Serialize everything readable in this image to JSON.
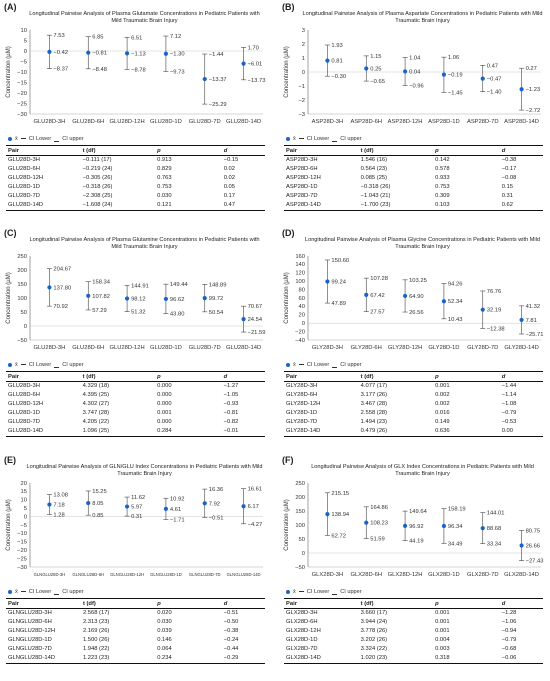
{
  "legend": {
    "mean": "x̄",
    "lower": "CI Lower",
    "upper": "CI upper"
  },
  "table_headers": [
    "Pair",
    "t (df)",
    "p",
    "d"
  ],
  "panels": [
    {
      "label": "(A)",
      "title": "Longitudinal Pairwise Analysis of Plasma Glutamate Concentrations in Pediatric Patients with Mild Traumatic Brain Injury",
      "chart_data": {
        "type": "errorbar",
        "ylabel": "Concentration (µM)",
        "ylim": [
          -30,
          10
        ],
        "yticks": [
          10,
          5,
          0,
          -5,
          -10,
          -15,
          -20,
          -25,
          -30
        ],
        "categories": [
          "GLU28D-3H",
          "GLU28D-6H",
          "GLU28D-12H",
          "GLU28D-1D",
          "GLU28D-7D",
          "GLU28D-14D"
        ],
        "mean": [
          -0.42,
          -0.81,
          -1.13,
          -1.3,
          -13.37,
          -6.01
        ],
        "upper": [
          7.53,
          6.85,
          6.51,
          7.12,
          -1.44,
          1.7
        ],
        "lower": [
          -8.37,
          -8.48,
          -8.78,
          -9.73,
          -25.29,
          -13.73
        ],
        "mean_labels": [
          "−0.42",
          "−0.81",
          "−1.13",
          "−1.30",
          "−13.37",
          "−6.01"
        ],
        "upper_labels": [
          "7.53",
          "6.85",
          "6.51",
          "7.12",
          "−1.44",
          "1.70"
        ],
        "lower_labels": [
          "−8.37",
          "−8.48",
          "−8.78",
          "−9.73",
          "−25.29",
          "−13.73"
        ]
      },
      "table": [
        [
          "GLU28D-3H",
          "−0.111 (17)",
          "0.913",
          "−0.15"
        ],
        [
          "GLU28D-6H",
          "−0.219 (24)",
          "0.829",
          "0.02"
        ],
        [
          "GLU28D-12H",
          "−0.305 (26)",
          "0.763",
          "0.02"
        ],
        [
          "GLU28D-1D",
          "−0.318 (26)",
          "0.753",
          "0.05"
        ],
        [
          "GLU28D-7D",
          "−2.308 (25)",
          "0.030",
          "0.17"
        ],
        [
          "GLU28D-14D",
          "−1.608 (24)",
          "0.121",
          "0.47"
        ]
      ]
    },
    {
      "label": "(B)",
      "title": "Longitudinal Pairwise Analysis of Plasma Aspartate Concentrations in Pediatric Patients with Mild Traumatic Brain Injury",
      "chart_data": {
        "type": "errorbar",
        "ylabel": "Concentration (µM)",
        "ylim": [
          -3,
          3
        ],
        "yticks": [
          3,
          2,
          1,
          0,
          -1,
          -2,
          -3
        ],
        "categories": [
          "ASP28D-3H",
          "ASP28D-6H",
          "ASP28D-12H",
          "ASP28D-1D",
          "ASP28D-7D",
          "ASP28D-14D"
        ],
        "mean": [
          0.81,
          0.25,
          0.04,
          -0.19,
          -0.47,
          -1.23
        ],
        "upper": [
          1.93,
          1.15,
          1.04,
          1.06,
          0.47,
          0.27
        ],
        "lower": [
          -0.3,
          -0.65,
          -0.96,
          -1.45,
          -1.4,
          -2.72
        ],
        "mean_labels": [
          "0.81",
          "0.25",
          "0.04",
          "−0.19",
          "−0.47",
          "−1.23"
        ],
        "upper_labels": [
          "1.93",
          "1.15",
          "1.04",
          "1.06",
          "0.47",
          "0.27"
        ],
        "lower_labels": [
          "−0.30",
          "−0.65",
          "−0.96",
          "−1.45",
          "−1.40",
          "−2.72"
        ]
      },
      "table": [
        [
          "ASP28D-3H",
          "1.546 (16)",
          "0.142",
          "−0.38"
        ],
        [
          "ASP28D-6H",
          "0.564 (23)",
          "0.578",
          "−0.17"
        ],
        [
          "ASP28D-12H",
          "0.085 (25)",
          "0.933",
          "−0.08"
        ],
        [
          "ASP28D-1D",
          "−0.318 (26)",
          "0.753",
          "0.15"
        ],
        [
          "ASP28D-7D",
          "−1.043 (21)",
          "0.309",
          "0.31"
        ],
        [
          "ASP28D-14D",
          "−1.700 (23)",
          "0.103",
          "0.62"
        ]
      ]
    },
    {
      "label": "(C)",
      "title": "Longitudinal Pairwise Analysis of Plasma Glutamine Concentrations in Pediatric Patients with Mild Traumatic Brain Injury",
      "chart_data": {
        "type": "errorbar",
        "ylabel": "Concentration (µM)",
        "ylim": [
          -50,
          250
        ],
        "yticks": [
          250,
          200,
          150,
          100,
          50,
          0,
          -50
        ],
        "categories": [
          "GLU28D-3H",
          "GLU28D-6H",
          "GLU28D-12H",
          "GLU28D-1D",
          "GLU28D-7D",
          "GLU28D-14D"
        ],
        "mean": [
          137.8,
          107.82,
          98.12,
          96.62,
          99.72,
          24.54
        ],
        "upper": [
          204.67,
          158.34,
          144.91,
          149.44,
          148.89,
          70.67
        ],
        "lower": [
          70.92,
          57.29,
          51.32,
          43.8,
          50.54,
          -21.59
        ],
        "mean_labels": [
          "137.80",
          "107.82",
          "98.12",
          "96.62",
          "99.72",
          "24.54"
        ],
        "upper_labels": [
          "204.67",
          "158.34",
          "144.91",
          "149.44",
          "148.89",
          "70.67"
        ],
        "lower_labels": [
          "70.92",
          "57.29",
          "51.32",
          "43.80",
          "50.54",
          "−21.59"
        ]
      },
      "table": [
        [
          "GLU28D-3H",
          "4.329 (18)",
          "0.000",
          "−1.27"
        ],
        [
          "GLU28D-6H",
          "4.395 (25)",
          "0.000",
          "−1.05"
        ],
        [
          "GLU28D-12H",
          "4.302 (27)",
          "0.000",
          "−0.93"
        ],
        [
          "GLU28D-1D",
          "3.747 (28)",
          "0.001",
          "−0.81"
        ],
        [
          "GLU28D-7D",
          "4.205 (22)",
          "0.000",
          "−0.82"
        ],
        [
          "GLU28D-14D",
          "1.096 (25)",
          "0.284",
          "−0.01"
        ]
      ]
    },
    {
      "label": "(D)",
      "title": "Longitudinal Pairwise Analysis of Plasma Glycine Concentrations in Pediatric Patients with Mild Traumatic Brain Injury",
      "chart_data": {
        "type": "errorbar",
        "ylabel": "Concentration (µM)",
        "ylim": [
          -40,
          160
        ],
        "yticks": [
          160,
          140,
          120,
          100,
          80,
          60,
          40,
          20,
          0,
          -20,
          -40
        ],
        "categories": [
          "GLY28D-3H",
          "GLY28D-6H",
          "GLY28D-12H",
          "GLY28D-1D",
          "GLY28D-7D",
          "GLY28D-14D"
        ],
        "mean": [
          99.24,
          67.42,
          64.9,
          52.34,
          32.19,
          7.81
        ],
        "upper": [
          150.6,
          107.28,
          103.25,
          94.26,
          76.76,
          41.32
        ],
        "lower": [
          47.89,
          27.57,
          26.56,
          10.43,
          -12.38,
          -25.71
        ],
        "mean_labels": [
          "99.24",
          "67.42",
          "64.90",
          "52.34",
          "32.19",
          "7.81"
        ],
        "upper_labels": [
          "150.60",
          "107.28",
          "103.25",
          "94.26",
          "76.76",
          "41.32"
        ],
        "lower_labels": [
          "47.89",
          "27.57",
          "26.56",
          "10.43",
          "−12.38",
          "−25.71"
        ]
      },
      "table": [
        [
          "GLY28D-3H",
          "4.077 (17)",
          "0.001",
          "−1.44"
        ],
        [
          "GLY28D-6H",
          "3.177 (26)",
          "0.002",
          "−1.14"
        ],
        [
          "GLY28D-12H",
          "3.467 (28)",
          "0.002",
          "−1.08"
        ],
        [
          "GLY28D-1D",
          "2.558 (28)",
          "0.016",
          "−0.79"
        ],
        [
          "GLY28D-7D",
          "1.494 (23)",
          "0.149",
          "−0.53"
        ],
        [
          "GLY28D-14D",
          "0.479 (26)",
          "0.636",
          "0.00"
        ]
      ]
    },
    {
      "label": "(E)",
      "title": "Longitudinal Pairwise Analysis of GLN/GLU Index Concentrations in Pediatric Patients with Mild Traumatic Brain Injury",
      "chart_data": {
        "type": "errorbar",
        "ylabel": "Concentration (µM)",
        "ylim": [
          -30,
          20
        ],
        "yticks": [
          20,
          15,
          10,
          5,
          0,
          -5,
          -10,
          -15,
          -20,
          -25,
          -30
        ],
        "categories": [
          "GLNGLU28D-3H",
          "GLNGLU28D-6H",
          "GLNGLU28D-12H",
          "GLNGLU28D-1D",
          "GLNGLU28D-7D",
          "GLNGLU28D-14D"
        ],
        "mean": [
          7.18,
          8.05,
          5.97,
          4.61,
          7.92,
          6.17
        ],
        "upper": [
          13.08,
          15.25,
          11.62,
          10.92,
          16.36,
          16.61
        ],
        "lower": [
          1.28,
          0.85,
          0.31,
          -1.71,
          -0.51,
          -4.27
        ],
        "mean_labels": [
          "7.18",
          "8.05",
          "5.97",
          "4.61",
          "7.92",
          "6.17"
        ],
        "upper_labels": [
          "13.08",
          "15.25",
          "11.62",
          "10.92",
          "16.36",
          "16.61"
        ],
        "lower_labels": [
          "1.28",
          "0.85",
          "0.31",
          "−1.71",
          "−0.51",
          "−4.27"
        ]
      },
      "table": [
        [
          "GLNGLU28D-3H",
          "2.568 (17)",
          "0.020",
          "−0.51"
        ],
        [
          "GLNGLU28D-6H",
          "2.313 (23)",
          "0.030",
          "−0.50"
        ],
        [
          "GLNGLU28D-12H",
          "2.169 (26)",
          "0.039",
          "−0.38"
        ],
        [
          "GLNGLU28D-1D",
          "1.500 (26)",
          "0.146",
          "−0.24"
        ],
        [
          "GLNGLU28D-7D",
          "1.948 (22)",
          "0.064",
          "−0.44"
        ],
        [
          "GLNGLU28D-14D",
          "1.223 (23)",
          "0.234",
          "−0.29"
        ]
      ]
    },
    {
      "label": "(F)",
      "title": "Longitudinal Pairwise Analysis of GLX Index Concentrations in Pediatric Patients with Mild Traumatic Brain Injury",
      "chart_data": {
        "type": "errorbar",
        "ylabel": "Concentration (µM)",
        "ylim": [
          -50,
          250
        ],
        "yticks": [
          250,
          200,
          150,
          100,
          50,
          0,
          -50
        ],
        "categories": [
          "GLX28D-3H",
          "GLX28D-6H",
          "GLX28D-12H",
          "GLX28D-1D",
          "GLX28D-7D",
          "GLX28D-14D"
        ],
        "mean": [
          138.94,
          108.23,
          96.92,
          96.34,
          88.68,
          26.66
        ],
        "upper": [
          215.15,
          164.86,
          149.64,
          158.19,
          144.01,
          80.75
        ],
        "lower": [
          62.72,
          51.59,
          44.19,
          34.49,
          33.34,
          -27.43
        ],
        "mean_labels": [
          "138.94",
          "108.23",
          "96.92",
          "96.34",
          "88.68",
          "26.66"
        ],
        "upper_labels": [
          "215.15",
          "164.86",
          "149.64",
          "158.19",
          "144.01",
          "80.75"
        ],
        "lower_labels": [
          "62.72",
          "51.59",
          "44.19",
          "34.49",
          "33.34",
          "−27.43"
        ]
      },
      "table": [
        [
          "GLX28D-3H",
          "3.660 (17)",
          "0.001",
          "−1.28"
        ],
        [
          "GLX28D-6H",
          "3.944 (24)",
          "0.001",
          "−1.06"
        ],
        [
          "GLX28D-12H",
          "3.778 (26)",
          "0.001",
          "−0.94"
        ],
        [
          "GLX28D-1D",
          "3.202 (26)",
          "0.004",
          "−0.79"
        ],
        [
          "GLX28D-7D",
          "3.324 (22)",
          "0.003",
          "−0.68"
        ],
        [
          "GLX28D-14D",
          "1.020 (23)",
          "0.318",
          "−0.06"
        ]
      ]
    }
  ]
}
